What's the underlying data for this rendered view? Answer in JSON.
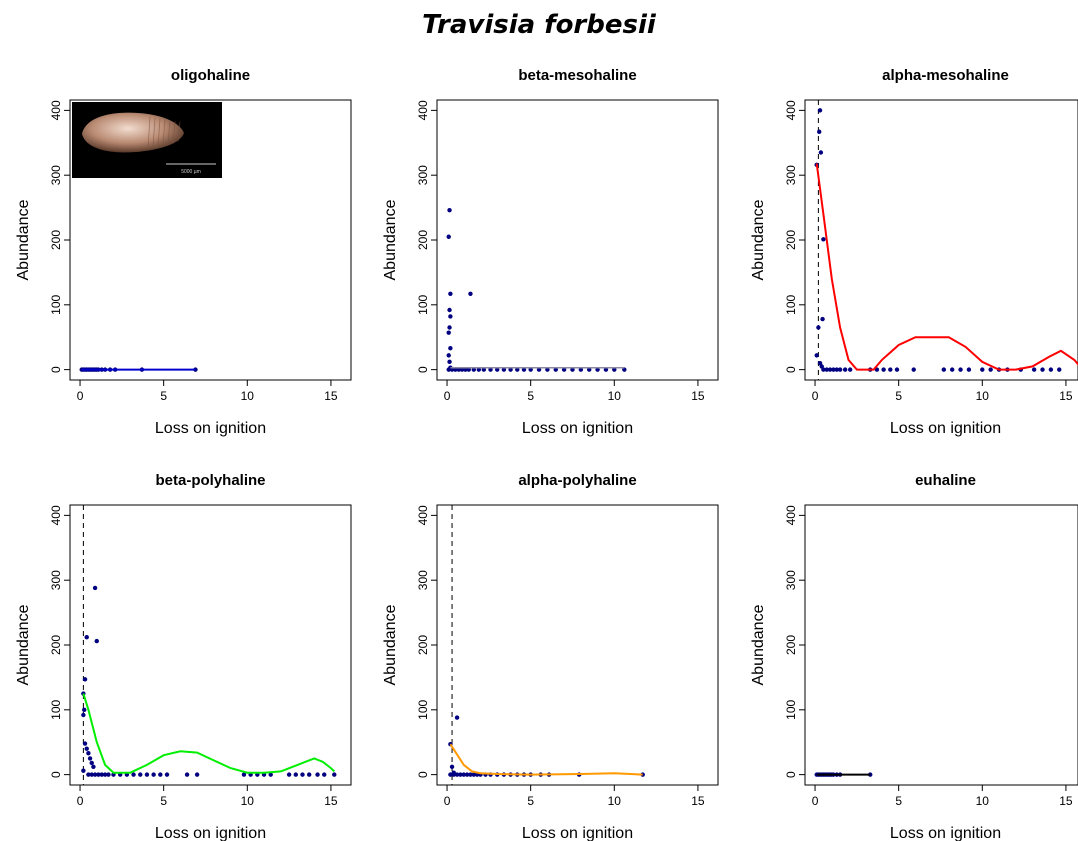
{
  "title": "Travisia forbesii",
  "inset_image": {
    "scale_label": "5000 µm"
  },
  "chart_data": [
    {
      "type": "scatter",
      "title": "oligohaline",
      "xlabel": "Loss on ignition",
      "ylabel": "Abundance",
      "xlim": [
        -0.6,
        16.2
      ],
      "ylim": [
        -16,
        416
      ],
      "xticks": [
        0,
        5,
        10,
        15
      ],
      "yticks": [
        0,
        100,
        200,
        300,
        400
      ],
      "points": [
        [
          0.1,
          0
        ],
        [
          0.2,
          0
        ],
        [
          0.3,
          0
        ],
        [
          0.4,
          0
        ],
        [
          0.5,
          0
        ],
        [
          0.6,
          0
        ],
        [
          0.7,
          0
        ],
        [
          0.8,
          0
        ],
        [
          0.9,
          0
        ],
        [
          1.0,
          0
        ],
        [
          1.1,
          0
        ],
        [
          1.3,
          0
        ],
        [
          1.5,
          0
        ],
        [
          1.8,
          0
        ],
        [
          2.1,
          0
        ],
        [
          3.7,
          0
        ],
        [
          6.9,
          0
        ]
      ],
      "vline": null,
      "curve": {
        "color": "#0000cd",
        "points": [
          [
            0.1,
            0
          ],
          [
            6.9,
            0
          ]
        ]
      }
    },
    {
      "type": "scatter",
      "title": "beta-mesohaline",
      "xlabel": "Loss on ignition",
      "ylabel": "Abundance",
      "xlim": [
        -0.6,
        16.2
      ],
      "ylim": [
        -16,
        416
      ],
      "xticks": [
        0,
        5,
        10,
        15
      ],
      "yticks": [
        0,
        100,
        200,
        300,
        400
      ],
      "points": [
        [
          0.15,
          246
        ],
        [
          0.1,
          205
        ],
        [
          0.2,
          117
        ],
        [
          1.4,
          117
        ],
        [
          0.15,
          92
        ],
        [
          0.2,
          82
        ],
        [
          0.15,
          65
        ],
        [
          0.1,
          57
        ],
        [
          0.2,
          33
        ],
        [
          0.1,
          22
        ],
        [
          0.15,
          12
        ],
        [
          0.2,
          3
        ],
        [
          0.1,
          0
        ],
        [
          0.3,
          0
        ],
        [
          0.5,
          0
        ],
        [
          0.7,
          0
        ],
        [
          0.9,
          0
        ],
        [
          1.1,
          0
        ],
        [
          1.3,
          0
        ],
        [
          1.6,
          0
        ],
        [
          1.9,
          0
        ],
        [
          2.2,
          0
        ],
        [
          2.6,
          0
        ],
        [
          3.0,
          0
        ],
        [
          3.4,
          0
        ],
        [
          3.8,
          0
        ],
        [
          4.2,
          0
        ],
        [
          4.6,
          0
        ],
        [
          5.0,
          0
        ],
        [
          5.5,
          0
        ],
        [
          6.0,
          0
        ],
        [
          6.5,
          0
        ],
        [
          7.0,
          0
        ],
        [
          7.5,
          0
        ],
        [
          8.0,
          0
        ],
        [
          8.5,
          0
        ],
        [
          9.0,
          0
        ],
        [
          9.5,
          0
        ],
        [
          10.0,
          0
        ],
        [
          10.6,
          0
        ]
      ],
      "vline": null,
      "curve": {
        "color": "#8a8aa8",
        "points": [
          [
            0.2,
            3
          ],
          [
            10.6,
            3
          ]
        ]
      }
    },
    {
      "type": "scatter",
      "title": "alpha-mesohaline",
      "xlabel": "Loss on ignition",
      "ylabel": "Abundance",
      "xlim": [
        -0.6,
        16.2
      ],
      "ylim": [
        -16,
        416
      ],
      "xticks": [
        0,
        5,
        10,
        15
      ],
      "yticks": [
        0,
        100,
        200,
        300,
        400
      ],
      "points": [
        [
          0.3,
          400
        ],
        [
          0.25,
          367
        ],
        [
          0.35,
          335
        ],
        [
          0.1,
          316
        ],
        [
          0.5,
          201
        ],
        [
          0.45,
          78
        ],
        [
          0.2,
          65
        ],
        [
          0.1,
          22
        ],
        [
          0.3,
          10
        ],
        [
          0.4,
          5
        ],
        [
          0.5,
          0
        ],
        [
          0.7,
          0
        ],
        [
          0.9,
          0
        ],
        [
          1.1,
          0
        ],
        [
          1.3,
          0
        ],
        [
          1.5,
          0
        ],
        [
          1.8,
          0
        ],
        [
          2.1,
          0
        ],
        [
          3.3,
          0
        ],
        [
          3.7,
          0
        ],
        [
          4.1,
          0
        ],
        [
          4.5,
          0
        ],
        [
          4.9,
          0
        ],
        [
          5.9,
          0
        ],
        [
          7.7,
          0
        ],
        [
          8.2,
          0
        ],
        [
          8.7,
          0
        ],
        [
          9.2,
          0
        ],
        [
          10.0,
          0
        ],
        [
          10.5,
          0
        ],
        [
          11.0,
          0
        ],
        [
          11.5,
          0
        ],
        [
          12.3,
          0
        ],
        [
          13.1,
          0
        ],
        [
          13.6,
          0
        ],
        [
          14.1,
          0
        ],
        [
          14.6,
          0
        ],
        [
          16.0,
          0
        ]
      ],
      "vline": 0.2,
      "curve": {
        "color": "#ff0000",
        "points": [
          [
            0.1,
            318
          ],
          [
            0.5,
            240
          ],
          [
            1.0,
            140
          ],
          [
            1.5,
            65
          ],
          [
            2.0,
            15
          ],
          [
            2.5,
            0
          ],
          [
            3.0,
            0
          ],
          [
            3.5,
            0
          ],
          [
            4.0,
            15
          ],
          [
            5.0,
            38
          ],
          [
            6.0,
            50
          ],
          [
            7.0,
            50
          ],
          [
            8.0,
            50
          ],
          [
            9.0,
            35
          ],
          [
            10.0,
            12
          ],
          [
            11.0,
            0
          ],
          [
            12.0,
            0
          ],
          [
            13.0,
            5
          ],
          [
            14.0,
            20
          ],
          [
            14.7,
            29
          ],
          [
            15.5,
            15
          ],
          [
            16.0,
            0
          ]
        ]
      }
    },
    {
      "type": "scatter",
      "title": "beta-polyhaline",
      "xlabel": "Loss on ignition",
      "ylabel": "Abundance",
      "xlim": [
        -0.6,
        16.2
      ],
      "ylim": [
        -16,
        416
      ],
      "xticks": [
        0,
        5,
        10,
        15
      ],
      "yticks": [
        0,
        100,
        200,
        300,
        400
      ],
      "points": [
        [
          0.9,
          288
        ],
        [
          0.4,
          212
        ],
        [
          1.0,
          206
        ],
        [
          0.3,
          147
        ],
        [
          0.2,
          125
        ],
        [
          0.25,
          100
        ],
        [
          0.2,
          92
        ],
        [
          0.3,
          48
        ],
        [
          0.4,
          40
        ],
        [
          0.5,
          33
        ],
        [
          0.6,
          25
        ],
        [
          0.7,
          18
        ],
        [
          0.8,
          12
        ],
        [
          0.2,
          6
        ],
        [
          0.5,
          0
        ],
        [
          0.7,
          0
        ],
        [
          0.9,
          0
        ],
        [
          1.1,
          0
        ],
        [
          1.3,
          0
        ],
        [
          1.5,
          0
        ],
        [
          1.7,
          0
        ],
        [
          2.0,
          0
        ],
        [
          2.4,
          0
        ],
        [
          2.8,
          0
        ],
        [
          3.2,
          0
        ],
        [
          3.6,
          0
        ],
        [
          4.0,
          0
        ],
        [
          4.4,
          0
        ],
        [
          4.8,
          0
        ],
        [
          5.2,
          0
        ],
        [
          6.4,
          0
        ],
        [
          7.0,
          0
        ],
        [
          9.8,
          0
        ],
        [
          10.2,
          0
        ],
        [
          10.6,
          0
        ],
        [
          11.0,
          0
        ],
        [
          11.4,
          0
        ],
        [
          12.5,
          0
        ],
        [
          12.9,
          0
        ],
        [
          13.3,
          0
        ],
        [
          13.7,
          0
        ],
        [
          14.2,
          0
        ],
        [
          14.6,
          0
        ],
        [
          15.2,
          0
        ]
      ],
      "vline": 0.2,
      "curve": {
        "color": "#00ee00",
        "points": [
          [
            0.2,
            125
          ],
          [
            0.5,
            100
          ],
          [
            1.0,
            50
          ],
          [
            1.5,
            15
          ],
          [
            2.0,
            3
          ],
          [
            3.0,
            3
          ],
          [
            4.0,
            15
          ],
          [
            5.0,
            30
          ],
          [
            6.0,
            36
          ],
          [
            7.0,
            34
          ],
          [
            8.0,
            22
          ],
          [
            9.0,
            10
          ],
          [
            10.0,
            3
          ],
          [
            11.0,
            3
          ],
          [
            12.0,
            5
          ],
          [
            13.0,
            15
          ],
          [
            14.0,
            25
          ],
          [
            14.5,
            20
          ],
          [
            15.0,
            10
          ],
          [
            15.2,
            5
          ]
        ]
      }
    },
    {
      "type": "scatter",
      "title": "alpha-polyhaline",
      "xlabel": "Loss on ignition",
      "ylabel": "Abundance",
      "xlim": [
        -0.6,
        16.2
      ],
      "ylim": [
        -16,
        416
      ],
      "xticks": [
        0,
        5,
        10,
        15
      ],
      "yticks": [
        0,
        100,
        200,
        300,
        400
      ],
      "points": [
        [
          0.6,
          88
        ],
        [
          0.2,
          47
        ],
        [
          0.3,
          12
        ],
        [
          0.4,
          3
        ],
        [
          0.2,
          0
        ],
        [
          0.4,
          0
        ],
        [
          0.6,
          0
        ],
        [
          0.8,
          0
        ],
        [
          1.0,
          0
        ],
        [
          1.2,
          0
        ],
        [
          1.4,
          0
        ],
        [
          1.6,
          0
        ],
        [
          1.8,
          0
        ],
        [
          2.0,
          0
        ],
        [
          2.3,
          0
        ],
        [
          2.6,
          0
        ],
        [
          3.0,
          0
        ],
        [
          3.4,
          0
        ],
        [
          3.8,
          0
        ],
        [
          4.2,
          0
        ],
        [
          4.6,
          0
        ],
        [
          5.0,
          0
        ],
        [
          5.6,
          0
        ],
        [
          6.1,
          0
        ],
        [
          7.9,
          0
        ],
        [
          11.7,
          0
        ]
      ],
      "vline": 0.3,
      "curve": {
        "color": "#ff9900",
        "points": [
          [
            0.2,
            47
          ],
          [
            0.5,
            35
          ],
          [
            1.0,
            15
          ],
          [
            1.5,
            5
          ],
          [
            2.0,
            2
          ],
          [
            3.0,
            1
          ],
          [
            5.0,
            0
          ],
          [
            8.0,
            1
          ],
          [
            10.0,
            2
          ],
          [
            11.7,
            0
          ]
        ]
      }
    },
    {
      "type": "scatter",
      "title": "euhaline",
      "xlabel": "Loss on ignition",
      "ylabel": "Abundance",
      "xlim": [
        -0.6,
        16.2
      ],
      "ylim": [
        -16,
        416
      ],
      "xticks": [
        0,
        5,
        10,
        15
      ],
      "yticks": [
        0,
        100,
        200,
        300,
        400
      ],
      "points": [
        [
          0.1,
          0
        ],
        [
          0.2,
          0
        ],
        [
          0.3,
          0
        ],
        [
          0.4,
          0
        ],
        [
          0.5,
          0
        ],
        [
          0.6,
          0
        ],
        [
          0.7,
          0
        ],
        [
          0.8,
          0
        ],
        [
          0.9,
          0
        ],
        [
          1.0,
          0
        ],
        [
          1.1,
          0
        ],
        [
          1.3,
          0
        ],
        [
          1.5,
          0
        ],
        [
          3.3,
          0
        ]
      ],
      "vline": null,
      "curve": {
        "color": "#000000",
        "points": [
          [
            0.1,
            0
          ],
          [
            3.3,
            0
          ]
        ]
      }
    }
  ]
}
